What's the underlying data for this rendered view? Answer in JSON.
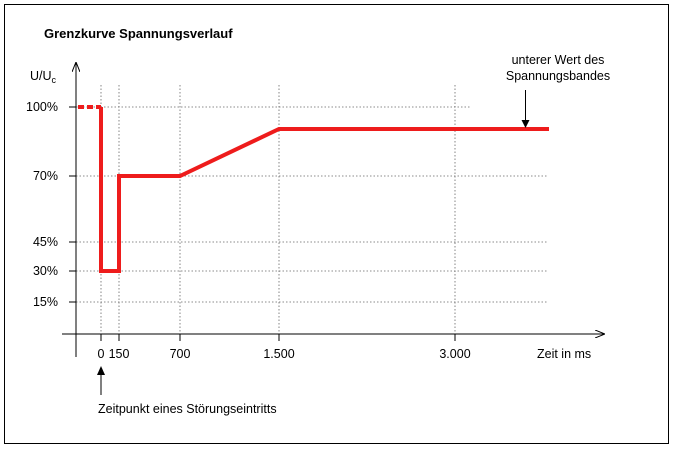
{
  "chart_data": {
    "type": "line",
    "title": "Grenzkurve Spannungsverlauf",
    "ylabel": "U/U",
    "ylabel_subscript": "c",
    "xlabel": "Zeit in ms",
    "y_ticks": [
      {
        "value": 100,
        "label": "100%"
      },
      {
        "value": 70,
        "label": "70%"
      },
      {
        "value": 45,
        "label": "45%"
      },
      {
        "value": 30,
        "label": "30%"
      },
      {
        "value": 15,
        "label": "15%"
      }
    ],
    "x_ticks": [
      {
        "value": 0,
        "label": "0"
      },
      {
        "value": 150,
        "label": "150"
      },
      {
        "value": 700,
        "label": "700"
      },
      {
        "value": 1500,
        "label": "1.500"
      },
      {
        "value": 3000,
        "label": "3.000"
      }
    ],
    "series": [
      {
        "color": "#ee1c1c",
        "dashed_segment": {
          "x": [
            -200,
            0
          ],
          "y": [
            100,
            100
          ]
        },
        "x": [
          0,
          0,
          150,
          150,
          700,
          1500,
          3800
        ],
        "y": [
          100,
          30,
          30,
          70,
          70,
          90,
          90
        ]
      }
    ],
    "grid": true,
    "annotations": [
      {
        "text_lines": [
          "unterer Wert des",
          "Spannungsbandes"
        ],
        "target": {
          "x": 3600,
          "y": 90
        }
      },
      {
        "text": "Zeitpunkt eines Störungseintritts",
        "target": {
          "x": 0,
          "y": 0
        }
      }
    ]
  }
}
